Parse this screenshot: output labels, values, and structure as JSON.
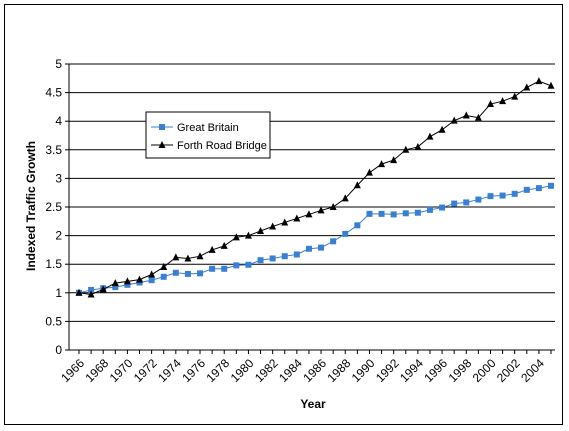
{
  "chart_data": {
    "type": "line",
    "xlabel": "Year",
    "ylabel": "Indexed Traffic Growth",
    "ylim": [
      0,
      5
    ],
    "yticks": [
      0,
      0.5,
      1,
      1.5,
      2,
      2.5,
      3,
      3.5,
      4,
      4.5,
      5
    ],
    "ytick_labels": [
      "0",
      "0.5",
      "1",
      "1.5",
      "2",
      "2.5",
      "3",
      "3.5",
      "4",
      "4.5",
      "5"
    ],
    "xlim": [
      1966,
      2005
    ],
    "xticks": [
      1966,
      1968,
      1970,
      1972,
      1974,
      1976,
      1978,
      1980,
      1982,
      1984,
      1986,
      1988,
      1990,
      1992,
      1994,
      1996,
      1998,
      2000,
      2002,
      2004
    ],
    "xtick_labels": [
      "1966",
      "1968",
      "1970",
      "1972",
      "1974",
      "1976",
      "1978",
      "1980",
      "1982",
      "1984",
      "1986",
      "1988",
      "1990",
      "1992",
      "1994",
      "1996",
      "1998",
      "2000",
      "2002",
      "2004"
    ],
    "grid": "horizontal",
    "legend_position": "upper-left",
    "x": [
      1966,
      1967,
      1968,
      1969,
      1970,
      1971,
      1972,
      1973,
      1974,
      1975,
      1976,
      1977,
      1978,
      1979,
      1980,
      1981,
      1982,
      1983,
      1984,
      1985,
      1986,
      1987,
      1988,
      1989,
      1990,
      1991,
      1992,
      1993,
      1994,
      1995,
      1996,
      1997,
      1998,
      1999,
      2000,
      2001,
      2002,
      2003,
      2004,
      2005
    ],
    "series": [
      {
        "name": "Great Britain",
        "color": "#3a7fd0",
        "marker": "square",
        "values": [
          1.0,
          1.05,
          1.08,
          1.1,
          1.14,
          1.18,
          1.22,
          1.28,
          1.35,
          1.33,
          1.34,
          1.42,
          1.42,
          1.48,
          1.49,
          1.57,
          1.6,
          1.64,
          1.67,
          1.77,
          1.79,
          1.9,
          2.03,
          2.18,
          2.38,
          2.38,
          2.37,
          2.39,
          2.4,
          2.45,
          2.49,
          2.56,
          2.58,
          2.63,
          2.69,
          2.7,
          2.73,
          2.8,
          2.83,
          2.87
        ]
      },
      {
        "name": "Forth Road Bridge",
        "color": "#000000",
        "marker": "triangle",
        "values": [
          1.0,
          0.97,
          1.06,
          1.17,
          1.2,
          1.23,
          1.32,
          1.45,
          1.62,
          1.6,
          1.64,
          1.75,
          1.82,
          1.97,
          2.0,
          2.08,
          2.16,
          2.23,
          2.3,
          2.37,
          2.44,
          2.5,
          2.65,
          2.88,
          3.1,
          3.25,
          3.32,
          3.5,
          3.55,
          3.73,
          3.85,
          4.01,
          4.1,
          4.06,
          4.3,
          4.35,
          4.43,
          4.59,
          4.7,
          4.62
        ]
      }
    ]
  }
}
